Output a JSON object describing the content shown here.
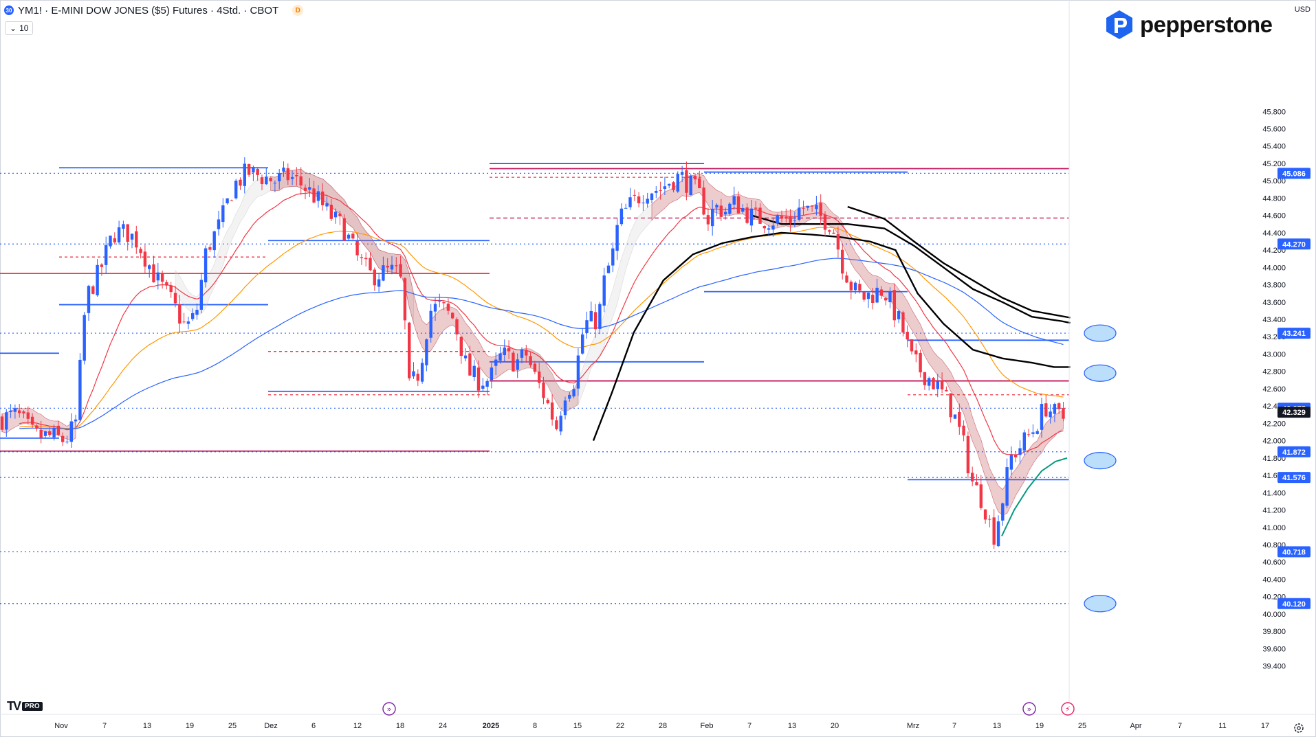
{
  "header": {
    "symbol_badge": "30",
    "title": "YM1! · E-MINI DOW JONES ($5) Futures · 4Std. · CBOT",
    "delay_badge": "D",
    "indicator_value": "10",
    "currency": "USD"
  },
  "brand": {
    "name": "pepperstone",
    "color": "#1e64f0",
    "tv_logo": "TV",
    "tv_pro": "PRO"
  },
  "chart_data": {
    "type": "candlestick",
    "y_axis": {
      "min": 39300,
      "max": 46000,
      "tick_labels": [
        "45.800",
        "45.600",
        "45.400",
        "45.200",
        "45.000",
        "44.800",
        "44.600",
        "44.400",
        "44.200",
        "44.000",
        "43.800",
        "43.600",
        "43.400",
        "43.200",
        "43.000",
        "42.800",
        "42.600",
        "42.400",
        "42.200",
        "42.000",
        "41.800",
        "41.600",
        "41.400",
        "41.200",
        "41.000",
        "40.800",
        "40.600",
        "40.400",
        "40.200",
        "40.000",
        "39.800",
        "39.600",
        "39.400"
      ],
      "tick_values": [
        45800,
        45600,
        45400,
        45200,
        45000,
        44800,
        44600,
        44400,
        44200,
        44000,
        43800,
        43600,
        43400,
        43200,
        43000,
        42800,
        42600,
        42400,
        42200,
        42000,
        41800,
        41600,
        41400,
        41200,
        41000,
        40800,
        40600,
        40400,
        40200,
        40000,
        39800,
        39600,
        39400
      ]
    },
    "x_axis": {
      "labels": [
        "Nov",
        "7",
        "13",
        "19",
        "25",
        "Dez",
        "6",
        "12",
        "18",
        "24",
        "2025",
        "8",
        "15",
        "22",
        "28",
        "Feb",
        "7",
        "13",
        "20",
        "Mrz",
        "7",
        "13",
        "19",
        "25",
        "Apr",
        "7",
        "11",
        "17"
      ],
      "bold": [
        "2025"
      ]
    },
    "price_levels": [
      {
        "value": 45086,
        "label": "45.086",
        "color": "#2962ff",
        "style": "dotted"
      },
      {
        "value": 44270,
        "label": "44.270",
        "color": "#2962ff",
        "style": "dotted"
      },
      {
        "value": 43241,
        "label": "43.241",
        "color": "#2962ff",
        "style": "dotted"
      },
      {
        "value": 42375,
        "label": "42.375",
        "color": "#2962ff",
        "style": "dotted"
      },
      {
        "value": 41872,
        "label": "41.872",
        "color": "#2962ff",
        "style": "dotted"
      },
      {
        "value": 41576,
        "label": "41.576",
        "color": "#2962ff",
        "style": "dotted"
      },
      {
        "value": 40718,
        "label": "40.718",
        "color": "#2962ff",
        "style": "dotted"
      },
      {
        "value": 40120,
        "label": "40.120",
        "color": "#2962ff",
        "style": "dotted"
      }
    ],
    "last_price": {
      "value": 42329,
      "label": "42.329"
    },
    "target_markers": [
      43241,
      42780,
      41770,
      40120
    ],
    "colors": {
      "up": "#2962ff",
      "down": "#f23645",
      "ema_fast": "#f23645",
      "ema_mid": "#ff9800",
      "ema_slow": "#2962ff",
      "band": "#b22833",
      "trend": "#000000",
      "support": "#089981",
      "magenta": "#c2185b"
    }
  },
  "icons": {
    "fwd_icon": "fast-forward-icon",
    "flash_icon": "flash-icon",
    "settings_icon": "gear-icon"
  }
}
